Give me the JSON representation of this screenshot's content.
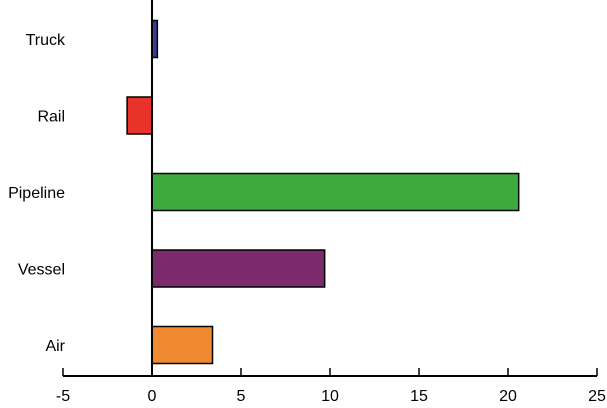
{
  "chart_data": {
    "type": "bar",
    "orientation": "horizontal",
    "categories": [
      "Truck",
      "Rail",
      "Pipeline",
      "Vessel",
      "Air"
    ],
    "values": [
      0.3,
      -1.4,
      20.6,
      9.7,
      3.4
    ],
    "colors": [
      "#3a3f94",
      "#e8332a",
      "#3daa3d",
      "#7b2a6b",
      "#f08a30"
    ],
    "xlim": [
      -5,
      25
    ],
    "xticks": [
      -5,
      0,
      5,
      10,
      15,
      20,
      25
    ],
    "xtick_labels": [
      "-5",
      "0",
      "5",
      "10",
      "15",
      "20",
      "25"
    ],
    "grid": false,
    "legend": "none"
  }
}
